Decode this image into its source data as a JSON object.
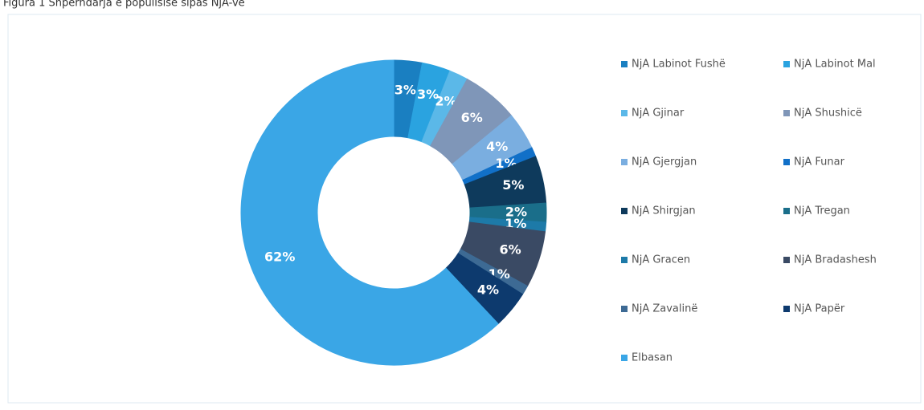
{
  "chart_data": {
    "type": "donut",
    "title": "Figura 1 Shpërndarja e popullsisë sipas NjA-ve",
    "categories": [
      "NjA Labinot Fushë",
      "NjA Labinot Mal",
      "NjA Gjinar",
      "NjA Shushicë",
      "NjA Gjergjan",
      "NjA Funar",
      "NjA Shirgjan",
      "NjA Tregan",
      "NjA Gracen",
      "NjA Bradashesh",
      "NjA Zavalinë",
      "NjA Papër",
      "Elbasan"
    ],
    "values": [
      3,
      3,
      2,
      6,
      4,
      1,
      5,
      2,
      1,
      6,
      1,
      4,
      62
    ],
    "value_labels": [
      "3%",
      "3%",
      "2%",
      "6%",
      "4%",
      "1%",
      "5%",
      "2%",
      "1%",
      "6%",
      "1%",
      "4%",
      "62%"
    ],
    "colors": [
      "#1a7fc1",
      "#2aa3e0",
      "#5bb8e8",
      "#7f96b8",
      "#7aaee0",
      "#1170c8",
      "#0e3a5c",
      "#1a6e8a",
      "#1d7aa8",
      "#3a4a64",
      "#3d6a94",
      "#0d3a6e",
      "#3aa6e6"
    ],
    "legend": "right"
  }
}
